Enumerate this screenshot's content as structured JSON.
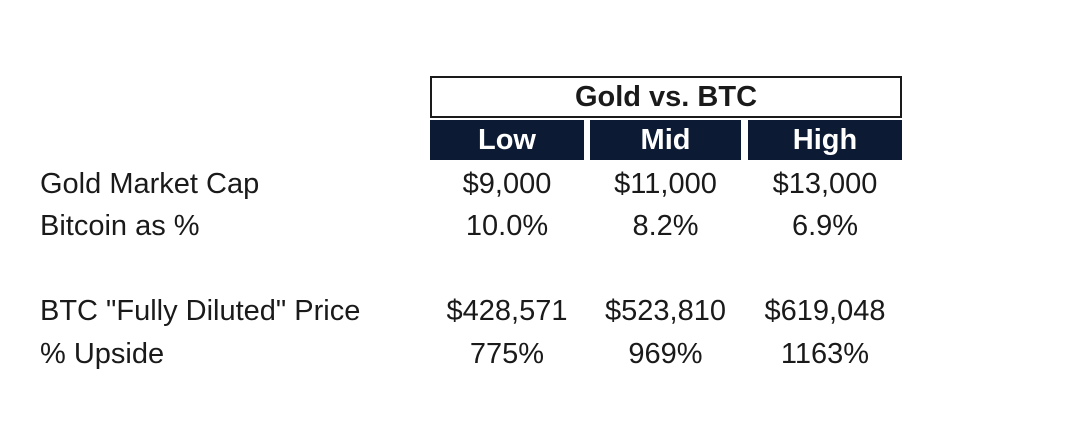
{
  "table": {
    "title": "Gold vs. BTC",
    "columns": [
      "Low",
      "Mid",
      "High"
    ],
    "rows": [
      {
        "label": "Gold Market Cap",
        "values": [
          "$9,000",
          "$11,000",
          "$13,000"
        ]
      },
      {
        "label": "Bitcoin as %",
        "values": [
          "10.0%",
          "8.2%",
          "6.9%"
        ]
      },
      {
        "label": "BTC \"Fully Diluted\" Price",
        "values": [
          "$428,571",
          "$523,810",
          "$619,048"
        ]
      },
      {
        "label": "% Upside",
        "values": [
          "775%",
          "969%",
          "1163%"
        ]
      }
    ]
  },
  "colors": {
    "header_bg": "#0c1a33",
    "header_text": "#ffffff",
    "text": "#1a1a1a"
  }
}
